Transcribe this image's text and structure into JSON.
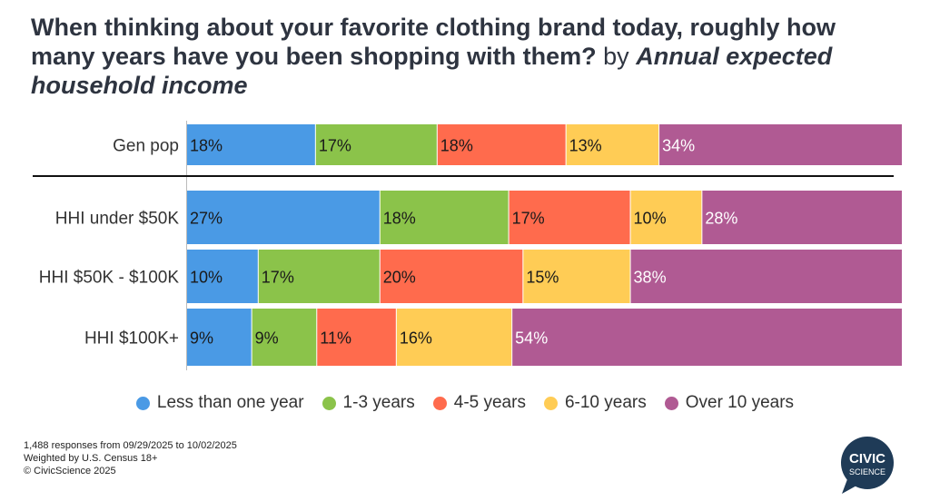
{
  "title": {
    "main": "When thinking about your favorite clothing brand today, roughly how many years have you been shopping with them?",
    "by": "by",
    "subtitle": "Annual expected household income"
  },
  "chart_data": {
    "type": "bar",
    "orientation": "horizontal-stacked-100",
    "categories": [
      "Gen pop",
      "HHI under $50K",
      "HHI $50K - $100K",
      "HHI $100K+"
    ],
    "series": [
      {
        "name": "Less than one year",
        "color": "#4a9ae5",
        "values": [
          18,
          27,
          10,
          9
        ]
      },
      {
        "name": "1-3 years",
        "color": "#8bc34a",
        "values": [
          17,
          18,
          17,
          9
        ]
      },
      {
        "name": "4-5 years",
        "color": "#ff6b4d",
        "values": [
          18,
          17,
          20,
          11
        ]
      },
      {
        "name": "6-10 years",
        "color": "#ffcc55",
        "values": [
          13,
          10,
          15,
          16
        ]
      },
      {
        "name": "Over 10 years",
        "color": "#b05a93",
        "values": [
          34,
          28,
          38,
          54
        ]
      }
    ],
    "value_suffix": "%",
    "legend_position": "bottom-center"
  },
  "footnote": {
    "line1": "1,488 responses from 09/29/2025 to 10/02/2025",
    "line2": "Weighted by U.S. Census 18+",
    "line3": "© CivicScience 2025"
  },
  "logo": {
    "line1": "CIVIC",
    "line2": "SCIENCE",
    "color": "#1f3b57"
  }
}
